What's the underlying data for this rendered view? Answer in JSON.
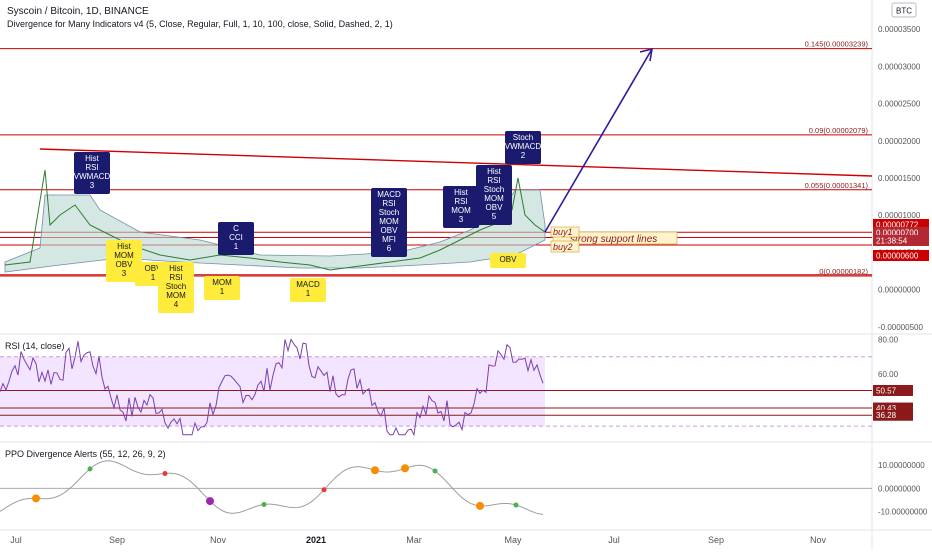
{
  "header": {
    "title": "Syscoin / Bitcoin, 1D, BINANCE",
    "indicator": "Divergence for Many Indicators v4 (5, Close, Regular, Full, 1, 10, 100, close, Solid, Dashed, 2, 1)",
    "currency_badge": "BTC"
  },
  "chart_data": [
    {
      "type": "line",
      "pane": "price",
      "title": "Syscoin / Bitcoin, 1D, BINANCE",
      "yaxis_ticks": [
        "0.00003500",
        "0.00003000",
        "0.00002500",
        "0.00002000",
        "0.00001500",
        "0.00001000",
        "0.00000500",
        "0.00000000",
        "-0.00000500"
      ],
      "xaxis_ticks": [
        "Jul",
        "Sep",
        "Nov",
        "2021",
        "Mar",
        "May",
        "Jul",
        "Sep",
        "Nov"
      ],
      "ylim": [
        -5.7e-06,
        3.65e-05
      ],
      "price_labels": [
        {
          "text": "0.00000772",
          "value": 7.72e-06,
          "color": "#cc0000"
        },
        {
          "text": "0.00000700",
          "value": 7e-06,
          "color": "#b22833"
        },
        {
          "text": "21:38:54",
          "value": 6.2e-06,
          "color": "#b22833"
        },
        {
          "text": "0.00000600",
          "value": 6e-06,
          "color": "#cc0000"
        }
      ],
      "fib_levels": [
        {
          "label": "0.145(0.00003239)",
          "value": 3.239e-05
        },
        {
          "label": "0.09(0.00002079)",
          "value": 2.079e-05
        },
        {
          "label": "0.055(0.00001341)",
          "value": 1.341e-05
        },
        {
          "label": "0(0.00000182)",
          "value": 1.82e-06
        }
      ],
      "support_text": "strong support lines",
      "buy_labels": [
        "buy1",
        "buy2"
      ],
      "divergence_labels": [
        {
          "lines": [
            "Hist",
            "RSI",
            "VWMACD",
            "3"
          ],
          "color": "#1a1a6e"
        },
        {
          "lines": [
            "Hist",
            "MOM",
            "OBV",
            "3"
          ],
          "color": "#ffeb3b"
        },
        {
          "lines": [
            "OBV",
            "1"
          ],
          "color": "#ffeb3b"
        },
        {
          "lines": [
            "Hist",
            "RSI",
            "Stoch",
            "MOM",
            "4"
          ],
          "color": "#ffeb3b"
        },
        {
          "lines": [
            "MOM",
            "1"
          ],
          "color": "#ffeb3b"
        },
        {
          "lines": [
            "C",
            "CCI",
            "1"
          ],
          "color": "#1a1a6e"
        },
        {
          "lines": [
            "MACD",
            "1"
          ],
          "color": "#ffeb3b"
        },
        {
          "lines": [
            "MACD",
            "RSI",
            "Stoch",
            "MOM",
            "OBV",
            "MFI",
            "6"
          ],
          "color": "#1a1a6e"
        },
        {
          "lines": [
            "Hist",
            "RSI",
            "MOM",
            "3"
          ],
          "color": "#1a1a6e"
        },
        {
          "lines": [
            "Hist",
            "RSI",
            "Stoch",
            "MOM",
            "OBV",
            "5"
          ],
          "color": "#1a1a6e"
        },
        {
          "lines": [
            "Stoch",
            "VWMACD",
            "2"
          ],
          "color": "#1a1a6e"
        },
        {
          "lines": [
            "OBV"
          ],
          "color": "#ffeb3b"
        }
      ],
      "colors": {
        "resistance": "#cc0000",
        "projection_arrow": "#2b1c9e",
        "fill": "#b9d7d0",
        "band": "#6f8ea8"
      }
    },
    {
      "type": "line",
      "pane": "rsi",
      "title": "RSI (14, close)",
      "yaxis_ticks": [
        "80.00",
        "60.00"
      ],
      "ylim": [
        22,
        82
      ],
      "levels": [
        {
          "text": "50.57",
          "value": 50.57
        },
        {
          "text": "40.43",
          "value": 40.43
        },
        {
          "text": "36.28",
          "value": 36.28
        }
      ],
      "band": [
        30,
        70
      ],
      "colors": {
        "line": "#7b3fb0",
        "band": "#f3e5ff",
        "level": "#8b1a1a"
      }
    },
    {
      "type": "line",
      "pane": "ppo",
      "title": "PPO Divergence Alerts (55, 12, 26, 9, 2)",
      "yaxis_ticks": [
        "10.00000000",
        "0.00000000",
        "-10.00000000"
      ],
      "ylim": [
        -17,
        19
      ],
      "colors": {
        "line": "#9e9e9e",
        "pos": "#4caf50",
        "neg": "#e53935",
        "alert": "#fb8c00",
        "extreme": "#9c27b0"
      }
    }
  ]
}
